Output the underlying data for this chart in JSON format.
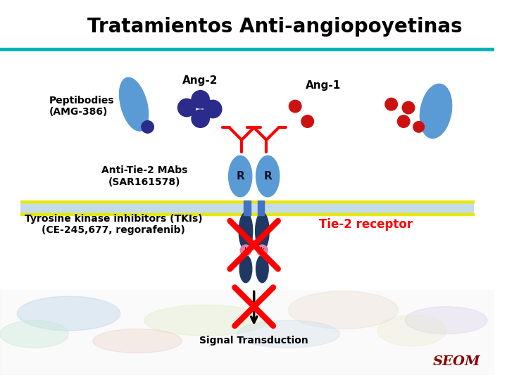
{
  "title": "Tratamientos Anti-angiopoyetinas",
  "title_fontsize": 20,
  "peptibodies_label": "Peptibodies\n(AMG-386)",
  "ang2_label": "Ang-2",
  "ang1_label": "Ang-1",
  "anti_tie2_label": "Anti-Tie-2 MAbs\n(SAR161578)",
  "tki_label": "Tyrosine kinase inhibitors (TKIs)\n(CE-245,677, regorafenib)",
  "tie2_label": "Tie-2 receptor",
  "signal_label": "Signal Transduction",
  "seom_label": "SEOM",
  "light_blue": "#5B9BD5",
  "mid_blue": "#4472C4",
  "dark_blue": "#1F3864",
  "red_color": "#FF0000",
  "navy": "#2B2B8C",
  "cell_bg": "#C5DCE8",
  "header_teal": "#00B4B4",
  "pink_kinase": "#E080A0"
}
